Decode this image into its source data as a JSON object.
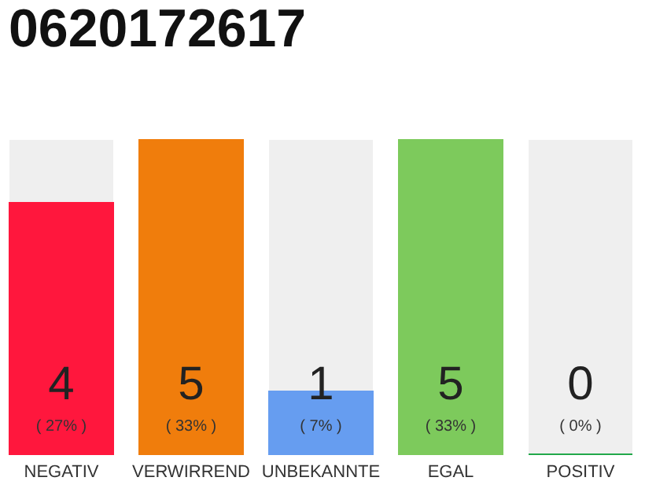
{
  "chart_data": {
    "type": "bar",
    "title": "0620172617",
    "categories": [
      "NEGATIV",
      "VERWIRREND",
      "UNBEKANNTE",
      "EGAL",
      "POSITIV"
    ],
    "values": [
      4,
      5,
      1,
      5,
      0
    ],
    "colors": [
      "#ff173d",
      "#f07d0c",
      "#669df0",
      "#7dca5c",
      "#22a84a"
    ],
    "data_labels": true,
    "tick_labels": "x",
    "annotations": [
      "( 27% )",
      "( 33% )",
      "( 7% )",
      "( 33% )",
      "( 0% )"
    ]
  }
}
